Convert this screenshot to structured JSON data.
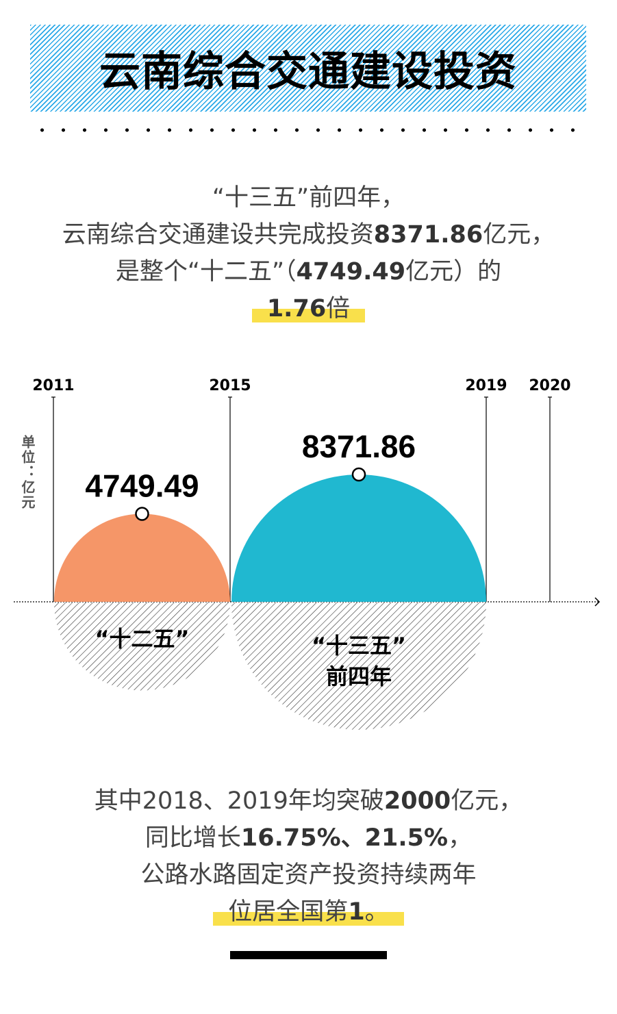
{
  "title": "云南综合交通建设投资",
  "intro": {
    "line1": "“十三五”前四年，",
    "line2_a": "云南综合交通建设共完成投资",
    "line2_b": "8371.86",
    "line2_c": "亿元，",
    "line3_a": "是整个“十二五”（",
    "line3_b": "4749.49",
    "line3_c": "亿元）的",
    "line4_a": "1.76",
    "line4_b": "倍"
  },
  "chart_data": {
    "type": "semicircle",
    "unit_label": "单位：亿元",
    "x_ticks": [
      "2011",
      "2015",
      "2019",
      "2020"
    ],
    "series": [
      {
        "label": "“十二五”",
        "label2": "",
        "start": "2011",
        "end": "2015",
        "value": 4749.49,
        "value_label": "4749.49",
        "color": "#f59668"
      },
      {
        "label": "“十三五”",
        "label2": "前四年",
        "start": "2015",
        "end": "2019",
        "value": 8371.86,
        "value_label": "8371.86",
        "color": "#20b8d0"
      }
    ]
  },
  "summary": {
    "line1_a": "其中2018、2019年均突破",
    "line1_b": "2000",
    "line1_c": "亿元，",
    "line2_a": "同比增长",
    "line2_b": "16.75%、21.5%",
    "line2_c": "，",
    "line3": "公路水路固定资产投资持续两年",
    "line4_a": "位居全国第",
    "line4_b": "1",
    "line4_c": "。"
  },
  "colors": {
    "banner_stripe": "#29a8e8",
    "highlight": "#f9e04b",
    "orange": "#f59668",
    "teal": "#20b8d0"
  }
}
